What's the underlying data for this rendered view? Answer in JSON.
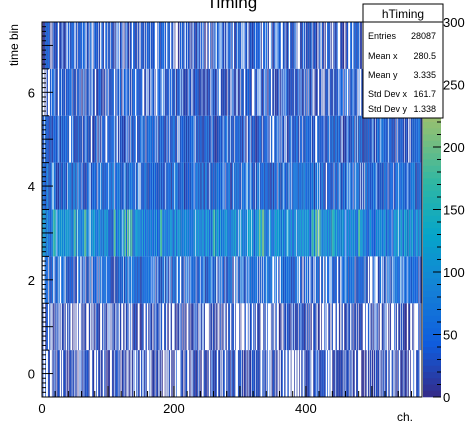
{
  "chart_data": {
    "type": "heatmap",
    "title": "Timing",
    "xlabel": "ch.",
    "ylabel": "time bin",
    "xlim": [
      0,
      576
    ],
    "ylim": [
      -0.5,
      7.5
    ],
    "xticks": [
      "0",
      "200",
      "400"
    ],
    "xtick_values": [
      0,
      200,
      400
    ],
    "yticks": [
      "0",
      "2",
      "4",
      "6"
    ],
    "ytick_values": [
      0,
      2,
      4,
      6
    ],
    "zlim": [
      0,
      300
    ],
    "zticks": [
      "0",
      "50",
      "100",
      "150",
      "200",
      "250",
      "300"
    ],
    "ztick_values": [
      0,
      50,
      100,
      150,
      200,
      250,
      300
    ],
    "rows": [
      {
        "time_bin": 0,
        "fill_fraction": 0.62,
        "low": 1,
        "high": 40,
        "hot_channels": []
      },
      {
        "time_bin": 1,
        "fill_fraction": 0.55,
        "low": 1,
        "high": 40,
        "hot_channels": []
      },
      {
        "time_bin": 2,
        "fill_fraction": 0.8,
        "low": 5,
        "high": 80,
        "hot_channels": []
      },
      {
        "time_bin": 3,
        "fill_fraction": 0.97,
        "low": 25,
        "high": 140,
        "hot_channels": [
          18,
          50,
          65,
          110,
          125,
          130,
          135,
          180,
          260,
          330,
          335,
          410,
          415,
          420,
          440,
          480
        ]
      },
      {
        "time_bin": 4,
        "fill_fraction": 0.92,
        "low": 8,
        "high": 90,
        "hot_channels": []
      },
      {
        "time_bin": 5,
        "fill_fraction": 0.85,
        "low": 5,
        "high": 70,
        "hot_channels": []
      },
      {
        "time_bin": 6,
        "fill_fraction": 0.7,
        "low": 3,
        "high": 60,
        "hot_channels": []
      },
      {
        "time_bin": 7,
        "fill_fraction": 0.7,
        "low": 3,
        "high": 60,
        "hot_channels": []
      }
    ]
  },
  "stats": {
    "name": "hTiming",
    "rows": [
      {
        "label": "Entries",
        "value": "28087"
      },
      {
        "label": "Mean x",
        "value": "280.5"
      },
      {
        "label": "Mean y",
        "value": "3.335"
      },
      {
        "label": "Std Dev x",
        "value": "161.7"
      },
      {
        "label": "Std Dev y",
        "value": "1.338"
      }
    ]
  }
}
